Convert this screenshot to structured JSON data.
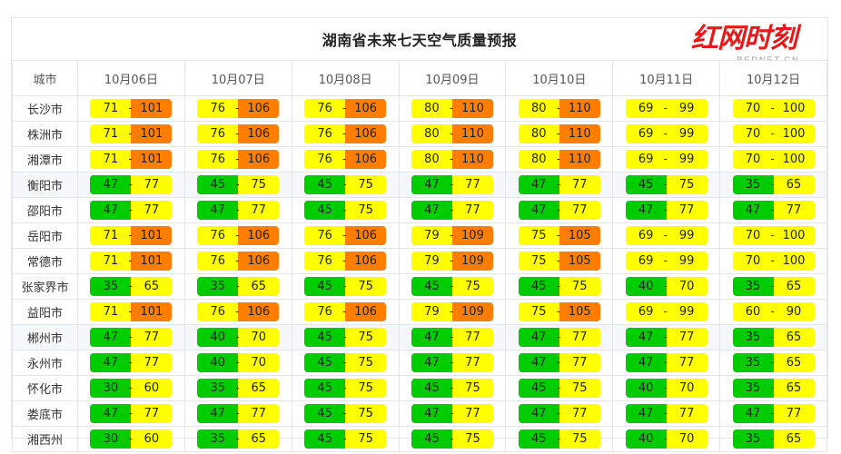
{
  "title": "湖南省未来七天空气质量预报",
  "logo": {
    "cn": "红网时刻",
    "en": "REDNET.CN"
  },
  "header": {
    "city_col": "城市",
    "dates": [
      "10月06日",
      "10月07日",
      "10月08日",
      "10月09日",
      "10月10日",
      "10月11日",
      "10月12日"
    ]
  },
  "colors": {
    "green": "#00cc00",
    "yellow": "#ffff00",
    "orange": "#ff7e00"
  },
  "rows": [
    {
      "city": "长沙市",
      "alt": false,
      "cells": [
        [
          "71",
          "101",
          "yo"
        ],
        [
          "76",
          "106",
          "yo"
        ],
        [
          "76",
          "106",
          "yo"
        ],
        [
          "80",
          "110",
          "yo"
        ],
        [
          "80",
          "110",
          "yo"
        ],
        [
          "69",
          "99",
          "yy"
        ],
        [
          "70",
          "100",
          "yy"
        ]
      ]
    },
    {
      "city": "株洲市",
      "alt": false,
      "cells": [
        [
          "71",
          "101",
          "yo"
        ],
        [
          "76",
          "106",
          "yo"
        ],
        [
          "76",
          "106",
          "yo"
        ],
        [
          "80",
          "110",
          "yo"
        ],
        [
          "80",
          "110",
          "yo"
        ],
        [
          "69",
          "99",
          "yy"
        ],
        [
          "70",
          "100",
          "yy"
        ]
      ]
    },
    {
      "city": "湘潭市",
      "alt": false,
      "cells": [
        [
          "71",
          "101",
          "yo"
        ],
        [
          "76",
          "106",
          "yo"
        ],
        [
          "76",
          "106",
          "yo"
        ],
        [
          "80",
          "110",
          "yo"
        ],
        [
          "80",
          "110",
          "yo"
        ],
        [
          "69",
          "99",
          "yy"
        ],
        [
          "70",
          "100",
          "yy"
        ]
      ]
    },
    {
      "city": "衡阳市",
      "alt": true,
      "cells": [
        [
          "47",
          "77",
          "gy"
        ],
        [
          "45",
          "75",
          "gy"
        ],
        [
          "45",
          "75",
          "gy"
        ],
        [
          "47",
          "77",
          "gy"
        ],
        [
          "47",
          "77",
          "gy"
        ],
        [
          "45",
          "75",
          "gy"
        ],
        [
          "35",
          "65",
          "gy"
        ]
      ]
    },
    {
      "city": "邵阳市",
      "alt": false,
      "cells": [
        [
          "47",
          "77",
          "gy"
        ],
        [
          "47",
          "77",
          "gy"
        ],
        [
          "45",
          "75",
          "gy"
        ],
        [
          "47",
          "77",
          "gy"
        ],
        [
          "47",
          "77",
          "gy"
        ],
        [
          "47",
          "77",
          "gy"
        ],
        [
          "47",
          "77",
          "gy"
        ]
      ]
    },
    {
      "city": "岳阳市",
      "alt": false,
      "cells": [
        [
          "71",
          "101",
          "yo"
        ],
        [
          "76",
          "106",
          "yo"
        ],
        [
          "76",
          "106",
          "yo"
        ],
        [
          "79",
          "109",
          "yo"
        ],
        [
          "75",
          "105",
          "yo"
        ],
        [
          "69",
          "99",
          "yy"
        ],
        [
          "70",
          "100",
          "yy"
        ]
      ]
    },
    {
      "city": "常德市",
      "alt": false,
      "cells": [
        [
          "71",
          "101",
          "yo"
        ],
        [
          "76",
          "106",
          "yo"
        ],
        [
          "76",
          "106",
          "yo"
        ],
        [
          "79",
          "109",
          "yo"
        ],
        [
          "75",
          "105",
          "yo"
        ],
        [
          "69",
          "99",
          "yy"
        ],
        [
          "70",
          "100",
          "yy"
        ]
      ]
    },
    {
      "city": "张家界市",
      "alt": false,
      "cells": [
        [
          "35",
          "65",
          "gy"
        ],
        [
          "35",
          "65",
          "gy"
        ],
        [
          "45",
          "75",
          "gy"
        ],
        [
          "45",
          "75",
          "gy"
        ],
        [
          "45",
          "75",
          "gy"
        ],
        [
          "40",
          "70",
          "gy"
        ],
        [
          "35",
          "65",
          "gy"
        ]
      ]
    },
    {
      "city": "益阳市",
      "alt": false,
      "cells": [
        [
          "71",
          "101",
          "yo"
        ],
        [
          "76",
          "106",
          "yo"
        ],
        [
          "76",
          "106",
          "yo"
        ],
        [
          "79",
          "109",
          "yo"
        ],
        [
          "75",
          "105",
          "yo"
        ],
        [
          "69",
          "99",
          "yy"
        ],
        [
          "60",
          "90",
          "yy"
        ]
      ]
    },
    {
      "city": "郴州市",
      "alt": true,
      "cells": [
        [
          "47",
          "77",
          "gy"
        ],
        [
          "40",
          "70",
          "gy"
        ],
        [
          "45",
          "75",
          "gy"
        ],
        [
          "47",
          "77",
          "gy"
        ],
        [
          "47",
          "77",
          "gy"
        ],
        [
          "47",
          "77",
          "gy"
        ],
        [
          "35",
          "65",
          "gy"
        ]
      ]
    },
    {
      "city": "永州市",
      "alt": false,
      "cells": [
        [
          "47",
          "77",
          "gy"
        ],
        [
          "40",
          "70",
          "gy"
        ],
        [
          "45",
          "75",
          "gy"
        ],
        [
          "47",
          "77",
          "gy"
        ],
        [
          "47",
          "77",
          "gy"
        ],
        [
          "47",
          "77",
          "gy"
        ],
        [
          "35",
          "65",
          "gy"
        ]
      ]
    },
    {
      "city": "怀化市",
      "alt": false,
      "cells": [
        [
          "30",
          "60",
          "gy"
        ],
        [
          "35",
          "65",
          "gy"
        ],
        [
          "45",
          "75",
          "gy"
        ],
        [
          "45",
          "75",
          "gy"
        ],
        [
          "45",
          "75",
          "gy"
        ],
        [
          "40",
          "70",
          "gy"
        ],
        [
          "35",
          "65",
          "gy"
        ]
      ]
    },
    {
      "city": "娄底市",
      "alt": false,
      "cells": [
        [
          "47",
          "77",
          "gy"
        ],
        [
          "47",
          "77",
          "gy"
        ],
        [
          "45",
          "75",
          "gy"
        ],
        [
          "47",
          "77",
          "gy"
        ],
        [
          "47",
          "77",
          "gy"
        ],
        [
          "47",
          "77",
          "gy"
        ],
        [
          "47",
          "77",
          "gy"
        ]
      ]
    },
    {
      "city": "湘西州",
      "alt": false,
      "cells": [
        [
          "30",
          "60",
          "gy"
        ],
        [
          "35",
          "65",
          "gy"
        ],
        [
          "45",
          "75",
          "gy"
        ],
        [
          "45",
          "75",
          "gy"
        ],
        [
          "45",
          "75",
          "gy"
        ],
        [
          "40",
          "70",
          "gy"
        ],
        [
          "35",
          "65",
          "gy"
        ]
      ]
    }
  ]
}
